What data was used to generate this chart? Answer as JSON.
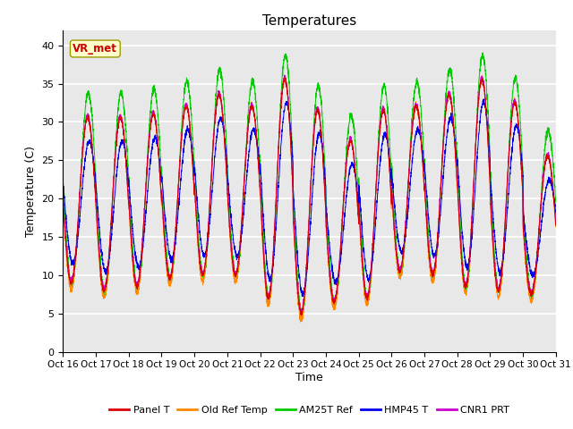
{
  "title": "Temperatures",
  "xlabel": "Time",
  "ylabel": "Temperature (C)",
  "ylim": [
    0,
    42
  ],
  "yticks": [
    0,
    5,
    10,
    15,
    20,
    25,
    30,
    35,
    40
  ],
  "xtick_labels": [
    "Oct 16",
    "Oct 17",
    "Oct 18",
    "Oct 19",
    "Oct 20",
    "Oct 21",
    "Oct 22",
    "Oct 23",
    "Oct 24",
    "Oct 25",
    "Oct 26",
    "Oct 27",
    "Oct 28",
    "Oct 29",
    "Oct 30",
    "Oct 31"
  ],
  "colors": {
    "Panel T": "#dd0000",
    "Old Ref Temp": "#ff8800",
    "AM25T Ref": "#00cc00",
    "HMP45 T": "#0000ee",
    "CNR1 PRT": "#cc00cc"
  },
  "legend_labels": [
    "Panel T",
    "Old Ref Temp",
    "AM25T Ref",
    "HMP45 T",
    "CNR1 PRT"
  ],
  "annotation_text": "VR_met",
  "annotation_color": "#cc0000",
  "annotation_bg": "#ffffcc",
  "plot_bg": "#e8e8e8",
  "fig_bg": "#ffffff",
  "grid_color": "#ffffff",
  "n_days": 15,
  "ppd": 288,
  "daily_mins_base": [
    9.0,
    8.0,
    8.5,
    9.5,
    10.0,
    10.0,
    7.0,
    5.0,
    6.5,
    7.0,
    10.5,
    10.0,
    8.5,
    8.0,
    7.5
  ],
  "daily_maxs_base": [
    30.5,
    30.5,
    31.0,
    32.0,
    33.5,
    32.0,
    35.5,
    31.5,
    27.5,
    31.5,
    32.0,
    33.5,
    35.5,
    32.5,
    25.5
  ]
}
